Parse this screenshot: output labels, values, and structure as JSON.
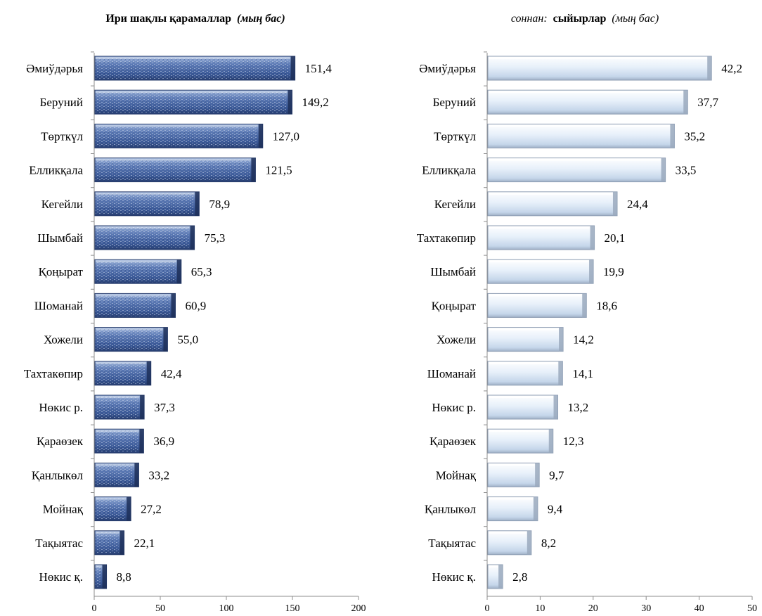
{
  "chart_data": [
    {
      "type": "bar",
      "orientation": "horizontal",
      "title_main": "Ири шақлы қарамаллар",
      "title_unit": "(мың бас)",
      "xlim": [
        0,
        200
      ],
      "xticks": [
        "0",
        "50",
        "100",
        "150",
        "200"
      ],
      "categories": [
        "Әмиўдәрья",
        "Беруний",
        "Төрткүл",
        "Елликқала",
        "Кегейли",
        "Шымбай",
        "Қоңырат",
        "Шоманай",
        "Хожели",
        "Тахтакөпир",
        "Нөкис р.",
        "Қараөзек",
        "Қанлыкөл",
        "Мойнақ",
        "Тақыятас",
        "Нөкис қ."
      ],
      "values": [
        151.4,
        149.2,
        127.0,
        121.5,
        78.9,
        75.3,
        65.3,
        60.9,
        55.0,
        42.4,
        37.3,
        36.9,
        33.2,
        27.2,
        22.1,
        8.8
      ],
      "value_labels": [
        "151,4",
        "149,2",
        "127,0",
        "121,5",
        "78,9",
        "75,3",
        "65,3",
        "60,9",
        "55,0",
        "42,4",
        "37,3",
        "36,9",
        "33,2",
        "27,2",
        "22,1",
        "8,8"
      ],
      "bar_color": "#3e5f9c"
    },
    {
      "type": "bar",
      "orientation": "horizontal",
      "title_prefix": "соннан:",
      "title_main": "сыйырлар",
      "title_unit": "(мың бас)",
      "xlim": [
        0,
        50
      ],
      "xticks": [
        "0",
        "10",
        "20",
        "30",
        "40",
        "50"
      ],
      "categories": [
        "Әмиўдәрья",
        "Беруний",
        "Төрткүл",
        "Елликқала",
        "Кегейли",
        "Тахтакөпир",
        "Шымбай",
        "Қоңырат",
        "Хожели",
        "Шоманай",
        "Нөкис р.",
        "Қараөзек",
        "Мойнақ",
        "Қанлыкөл",
        "Тақыятас",
        "Нөкис қ."
      ],
      "values": [
        42.2,
        37.7,
        35.2,
        33.5,
        24.4,
        20.1,
        19.9,
        18.6,
        14.2,
        14.1,
        13.2,
        12.3,
        9.7,
        9.4,
        8.2,
        2.8
      ],
      "value_labels": [
        "42,2",
        "37,7",
        "35,2",
        "33,5",
        "24,4",
        "20,1",
        "19,9",
        "18,6",
        "14,2",
        "14,1",
        "13,2",
        "12,3",
        "9,7",
        "9,4",
        "8,2",
        "2,8"
      ],
      "bar_color": "#d6e6f6"
    }
  ]
}
